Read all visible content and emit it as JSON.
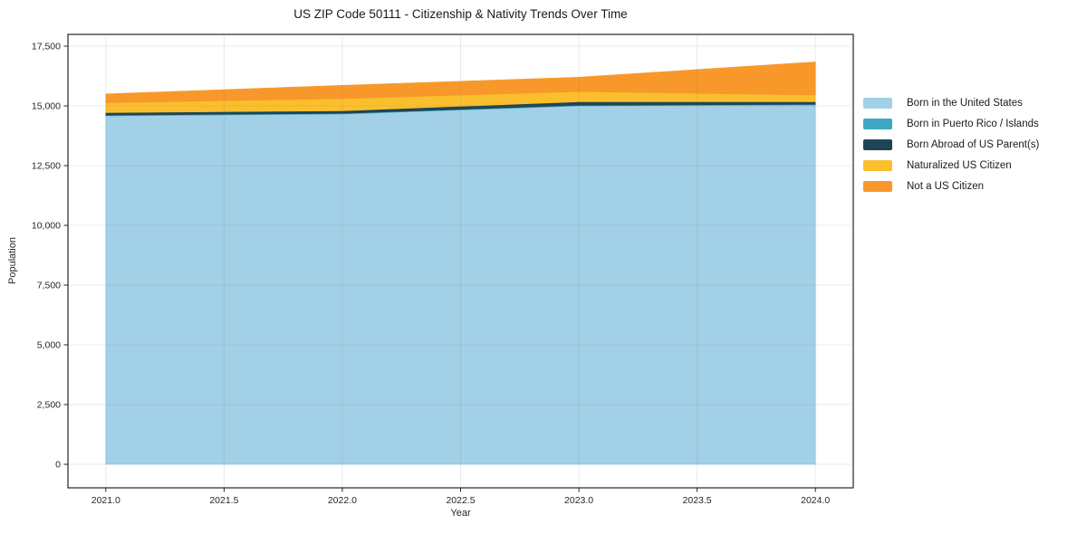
{
  "chart_data": {
    "type": "area",
    "stacked": true,
    "title": "US ZIP Code 50111 - Citizenship & Nativity Trends Over Time",
    "xlabel": "Year",
    "ylabel": "Population",
    "x": [
      2021,
      2022,
      2023,
      2024
    ],
    "series": [
      {
        "name": "Born in the United States",
        "color": "#a1d0e7",
        "values": [
          14585,
          14660,
          15000,
          15040
        ]
      },
      {
        "name": "Born in Puerto Rico / Islands",
        "color": "#3ea8c4",
        "values": [
          25,
          25,
          25,
          25
        ]
      },
      {
        "name": "Born Abroad of US Parent(s)",
        "color": "#1e4557",
        "values": [
          110,
          110,
          150,
          110
        ]
      },
      {
        "name": "Naturalized US Citizen",
        "color": "#fbbf2d",
        "values": [
          410,
          505,
          425,
          275
        ]
      },
      {
        "name": "Not a US Citizen",
        "color": "#f8982b",
        "values": [
          370,
          560,
          600,
          1390
        ]
      }
    ],
    "xticks": {
      "values": [
        2021.0,
        2021.5,
        2022.0,
        2022.5,
        2023.0,
        2023.5,
        2024.0
      ],
      "labels": [
        "2021.0",
        "2021.5",
        "2022.0",
        "2022.5",
        "2023.0",
        "2023.5",
        "2024.0"
      ]
    },
    "yticks": {
      "values": [
        0,
        2500,
        5000,
        7500,
        10000,
        12500,
        15000,
        17500
      ],
      "labels": [
        "0",
        "2,500",
        "5,000",
        "7,500",
        "10,000",
        "12,500",
        "15,000",
        "17,500"
      ]
    },
    "xlim": [
      2020.84,
      2024.16
    ],
    "ylim": [
      -985,
      17993
    ],
    "grid": true,
    "legend_position": "right",
    "axis_color": "#262626",
    "tick_label_color": "#262626",
    "grid_color": "#6e6e6e"
  }
}
